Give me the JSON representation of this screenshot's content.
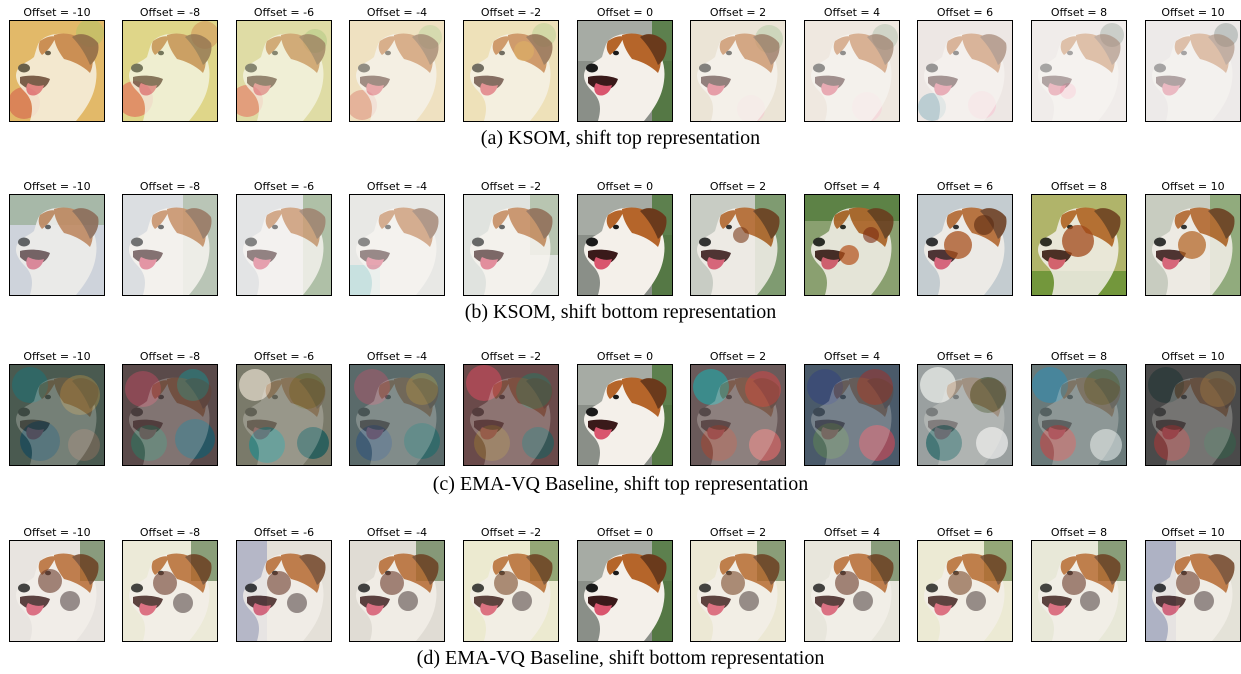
{
  "figure": {
    "offset_labels": [
      "Offset = -10",
      "Offset = -8",
      "Offset = -6",
      "Offset = -4",
      "Offset = -2",
      "Offset = 0",
      "Offset = 2",
      "Offset = 4",
      "Offset = 6",
      "Offset = 8",
      "Offset = 10"
    ],
    "panels": [
      {
        "caption": "(a) KSOM, shift top representation",
        "style": "pastel"
      },
      {
        "caption": "(b) KSOM, shift bottom representation",
        "style": "speckled"
      },
      {
        "caption": "(c) EMA-VQ Baseline, shift top representation",
        "style": "noise"
      },
      {
        "caption": "(d) EMA-VQ Baseline, shift bottom representation",
        "style": "mosaic"
      }
    ]
  },
  "colors": {
    "dog_brown": "#b5652a",
    "dog_white": "#f4f0ea",
    "background_green": "#3f6e2a",
    "tongue": "#d9556e"
  }
}
